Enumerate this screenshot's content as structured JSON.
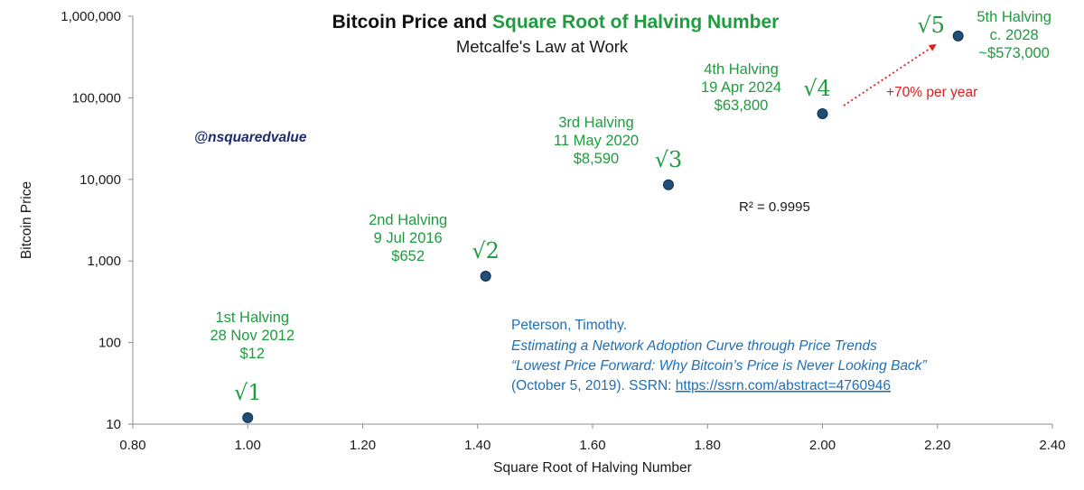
{
  "chart_data": {
    "type": "scatter",
    "title_part1": "Bitcoin Price and ",
    "title_part2": "Square Root of Halving Number",
    "subtitle": "Metcalfe's Law at Work",
    "xlabel": "Square Root of Halving Number",
    "ylabel": "Bitcoin Price",
    "xlim": [
      0.8,
      2.4
    ],
    "ylim": [
      10,
      1000000
    ],
    "yscale": "log",
    "xticks": [
      "0.80",
      "1.00",
      "1.20",
      "1.40",
      "1.60",
      "1.80",
      "2.00",
      "2.20",
      "2.40"
    ],
    "yticks": [
      "10",
      "100",
      "1,000",
      "10,000",
      "100,000",
      "1,000,000"
    ],
    "grid": false,
    "colors": {
      "marker": "#1f4e79",
      "annotation": "#1f9c3f",
      "growth": "#e31b1b",
      "citation": "#1f6fb5",
      "handle": "#1f2a6b"
    },
    "points": [
      {
        "x": 1.0,
        "y": 12,
        "root": "√1",
        "lines": [
          "1st Halving",
          "28 Nov 2012",
          "$12"
        ]
      },
      {
        "x": 1.414,
        "y": 652,
        "root": "√2",
        "lines": [
          "2nd Halving",
          "9 Jul 2016",
          "$652"
        ]
      },
      {
        "x": 1.732,
        "y": 8590,
        "root": "√3",
        "lines": [
          "3rd Halving",
          "11 May 2020",
          "$8,590"
        ]
      },
      {
        "x": 2.0,
        "y": 63800,
        "root": "√4",
        "lines": [
          "4th Halving",
          "19 Apr 2024",
          "$63,800"
        ]
      },
      {
        "x": 2.236,
        "y": 573000,
        "root": "√5",
        "lines": [
          "5th Halving",
          "c. 2028",
          "~$573,000"
        ]
      }
    ],
    "r_squared_label": "R² = 0.9995",
    "growth_label": "+70% per year",
    "handle": "@nsquaredvalue",
    "citation": {
      "author": "Peterson, Timothy.",
      "paper": "Estimating a Network Adoption Curve through Price Trends",
      "quote": "“Lowest Price Forward: Why Bitcoin’s Price is Never Looking Back”",
      "date_ref": "(October 5, 2019). SSRN: ",
      "link": "https://ssrn.com/abstract=4760946"
    }
  }
}
